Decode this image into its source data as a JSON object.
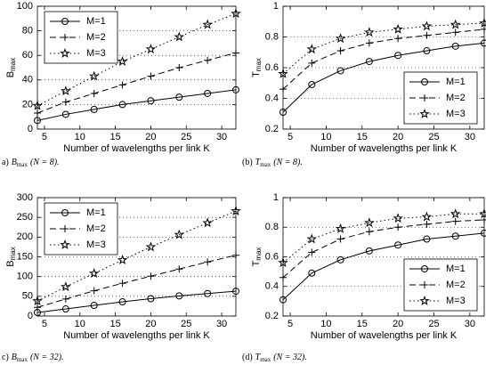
{
  "chart_data": [
    {
      "type": "line",
      "ylabel": "B",
      "ylabel_sub": "max",
      "xlabel": "Number of wavelengths per link K",
      "caption": {
        "label": "a)",
        "var": "B",
        "sub": "max",
        "rest": "(N = 8)."
      },
      "x": [
        4,
        8,
        12,
        16,
        20,
        24,
        28,
        32
      ],
      "xlim": [
        4,
        32
      ],
      "xticks": [
        5,
        10,
        15,
        20,
        25,
        30
      ],
      "ylim": [
        0,
        100
      ],
      "yticks": [
        0,
        20,
        40,
        60,
        80,
        100
      ],
      "grid": "y",
      "legend": "upper-left",
      "series": [
        {
          "name": "M=1",
          "color": "#000000",
          "linestyle": "solid",
          "marker": "o",
          "values": [
            7,
            12,
            16,
            20,
            23,
            26,
            29,
            32
          ]
        },
        {
          "name": "M=2",
          "color": "#000000",
          "linestyle": "dashed",
          "marker": "+",
          "values": [
            13,
            22,
            29,
            36,
            43,
            50,
            56,
            62
          ]
        },
        {
          "name": "M=3",
          "color": "#000000",
          "linestyle": "dotted",
          "marker": "*",
          "values": [
            19,
            31,
            43,
            55,
            65,
            75,
            85,
            94
          ]
        }
      ]
    },
    {
      "type": "line",
      "ylabel": "T",
      "ylabel_sub": "max",
      "xlabel": "Number of wavelengths per link K",
      "caption": {
        "label": "(b)",
        "var": "T",
        "sub": "max",
        "rest": "(N = 8)."
      },
      "x": [
        4,
        8,
        12,
        16,
        20,
        24,
        28,
        32
      ],
      "xlim": [
        4,
        32
      ],
      "xticks": [
        5,
        10,
        15,
        20,
        25,
        30
      ],
      "ylim": [
        0.2,
        1
      ],
      "yticks": [
        0.2,
        0.4,
        0.6,
        0.8,
        1
      ],
      "grid": "y",
      "legend": "lower-right",
      "series": [
        {
          "name": "M=1",
          "color": "#000000",
          "linestyle": "solid",
          "marker": "o",
          "values": [
            0.31,
            0.49,
            0.58,
            0.64,
            0.68,
            0.71,
            0.74,
            0.76
          ]
        },
        {
          "name": "M=2",
          "color": "#000000",
          "linestyle": "dashed",
          "marker": "+",
          "values": [
            0.46,
            0.63,
            0.71,
            0.76,
            0.79,
            0.81,
            0.83,
            0.85
          ]
        },
        {
          "name": "M=3",
          "color": "#000000",
          "linestyle": "dotted",
          "marker": "*",
          "values": [
            0.56,
            0.72,
            0.79,
            0.83,
            0.85,
            0.87,
            0.88,
            0.89
          ]
        }
      ]
    },
    {
      "type": "line",
      "ylabel": "B",
      "ylabel_sub": "max",
      "xlabel": "Number of wavelengths per link K",
      "caption": {
        "label": "c)",
        "var": "B",
        "sub": "max",
        "rest": "(N = 32)."
      },
      "x": [
        4,
        8,
        12,
        16,
        20,
        24,
        28,
        32
      ],
      "xlim": [
        4,
        32
      ],
      "xticks": [
        5,
        10,
        15,
        20,
        25,
        30
      ],
      "ylim": [
        0,
        300
      ],
      "yticks": [
        0,
        50,
        100,
        150,
        200,
        250,
        300
      ],
      "grid": "y",
      "legend": "upper-left",
      "series": [
        {
          "name": "M=1",
          "color": "#000000",
          "linestyle": "solid",
          "marker": "o",
          "values": [
            9,
            18,
            27,
            36,
            44,
            51,
            57,
            63
          ]
        },
        {
          "name": "M=2",
          "color": "#000000",
          "linestyle": "dashed",
          "marker": "+",
          "values": [
            22,
            43,
            64,
            83,
            101,
            119,
            137,
            154
          ]
        },
        {
          "name": "M=3",
          "color": "#000000",
          "linestyle": "dotted",
          "marker": "*",
          "values": [
            38,
            74,
            108,
            142,
            175,
            206,
            236,
            266
          ]
        }
      ]
    },
    {
      "type": "line",
      "ylabel": "T",
      "ylabel_sub": "max",
      "xlabel": "Number of wavelengths per link K",
      "caption": {
        "label": "(d)",
        "var": "T",
        "sub": "max",
        "rest": "(N = 32)."
      },
      "x": [
        4,
        8,
        12,
        16,
        20,
        24,
        28,
        32
      ],
      "xlim": [
        4,
        32
      ],
      "xticks": [
        5,
        10,
        15,
        20,
        25,
        30
      ],
      "ylim": [
        0.2,
        1
      ],
      "yticks": [
        0.2,
        0.4,
        0.6,
        0.8,
        1
      ],
      "grid": "y",
      "legend": "lower-right",
      "series": [
        {
          "name": "M=1",
          "color": "#000000",
          "linestyle": "solid",
          "marker": "o",
          "values": [
            0.31,
            0.49,
            0.58,
            0.64,
            0.68,
            0.72,
            0.74,
            0.76
          ]
        },
        {
          "name": "M=2",
          "color": "#000000",
          "linestyle": "dashed",
          "marker": "+",
          "values": [
            0.46,
            0.63,
            0.72,
            0.77,
            0.8,
            0.82,
            0.84,
            0.85
          ]
        },
        {
          "name": "M=3",
          "color": "#000000",
          "linestyle": "dotted",
          "marker": "*",
          "values": [
            0.56,
            0.72,
            0.79,
            0.83,
            0.86,
            0.87,
            0.89,
            0.89
          ]
        }
      ]
    }
  ]
}
